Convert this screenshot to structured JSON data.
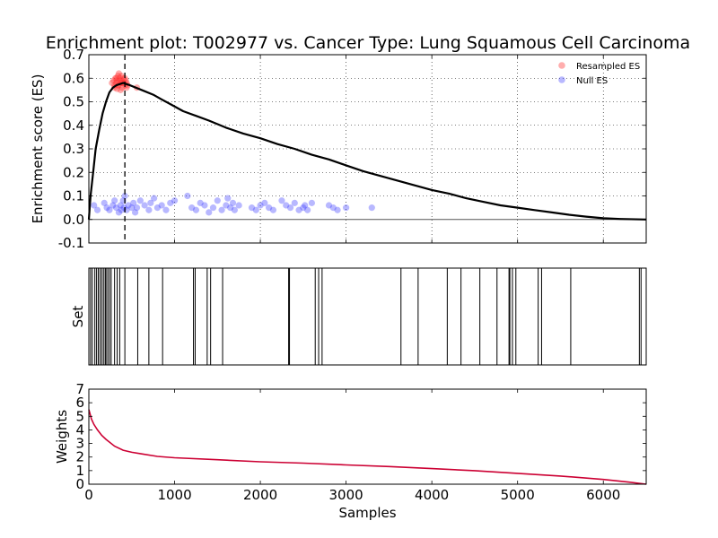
{
  "title": "Enrichment plot: T002977 vs. Cancer Type: Lung Squamous Cell Carcinoma",
  "chart_data": [
    {
      "panel": "enrichment",
      "type": "line",
      "ylabel": "Enrichment score (ES)",
      "xlim": [
        0,
        6500
      ],
      "ylim": [
        -0.1,
        0.7
      ],
      "yticks": [
        -0.1,
        0.0,
        0.1,
        0.2,
        0.3,
        0.4,
        0.5,
        0.6,
        0.7
      ],
      "xticks": [
        0,
        1000,
        2000,
        3000,
        4000,
        5000,
        6000
      ],
      "grid": true,
      "legend_position": "top-right",
      "peak_x": 420,
      "series": [
        {
          "name": "",
          "color": "#000000",
          "x": [
            0,
            20,
            50,
            80,
            120,
            160,
            200,
            240,
            280,
            320,
            360,
            400,
            440,
            480,
            550,
            650,
            750,
            850,
            950,
            1100,
            1250,
            1400,
            1600,
            1800,
            2000,
            2200,
            2400,
            2600,
            2800,
            3000,
            3200,
            3400,
            3600,
            3800,
            4000,
            4200,
            4400,
            4600,
            4800,
            5000,
            5200,
            5400,
            5600,
            5800,
            6000,
            6200,
            6500
          ],
          "y": [
            0.0,
            0.1,
            0.2,
            0.3,
            0.38,
            0.45,
            0.5,
            0.54,
            0.56,
            0.57,
            0.575,
            0.58,
            0.575,
            0.57,
            0.56,
            0.545,
            0.53,
            0.51,
            0.49,
            0.46,
            0.44,
            0.42,
            0.39,
            0.365,
            0.345,
            0.32,
            0.3,
            0.275,
            0.255,
            0.23,
            0.205,
            0.185,
            0.165,
            0.145,
            0.125,
            0.11,
            0.09,
            0.075,
            0.06,
            0.05,
            0.04,
            0.03,
            0.02,
            0.012,
            0.005,
            0.002,
            0.0
          ]
        },
        {
          "name": "Resampled ES",
          "color": "#ff3333",
          "type": "scatter",
          "x": [
            270,
            290,
            300,
            310,
            320,
            330,
            340,
            350,
            360,
            370,
            380,
            390,
            400,
            410,
            420,
            430,
            440,
            450,
            300,
            320,
            340,
            360,
            380,
            400,
            420,
            440,
            350,
            370,
            390,
            330,
            560
          ],
          "y": [
            0.58,
            0.59,
            0.57,
            0.6,
            0.58,
            0.59,
            0.61,
            0.57,
            0.6,
            0.58,
            0.59,
            0.56,
            0.6,
            0.58,
            0.57,
            0.59,
            0.58,
            0.57,
            0.56,
            0.6,
            0.57,
            0.59,
            0.61,
            0.58,
            0.6,
            0.56,
            0.62,
            0.55,
            0.58,
            0.555,
            0.56
          ]
        },
        {
          "name": "Null ES",
          "color": "#3333ff",
          "type": "scatter",
          "x": [
            60,
            100,
            180,
            210,
            240,
            280,
            300,
            320,
            350,
            370,
            380,
            400,
            410,
            420,
            440,
            460,
            500,
            520,
            540,
            560,
            600,
            650,
            700,
            720,
            760,
            800,
            850,
            900,
            950,
            1000,
            1150,
            1200,
            1250,
            1300,
            1350,
            1400,
            1450,
            1500,
            1550,
            1600,
            1620,
            1650,
            1680,
            1700,
            1750,
            1900,
            1950,
            2000,
            2050,
            2100,
            2150,
            2250,
            2300,
            2350,
            2400,
            2450,
            2500,
            2520,
            2550,
            2600,
            2800,
            2850,
            2900,
            3000,
            3300
          ],
          "y": [
            0.06,
            0.04,
            0.07,
            0.05,
            0.04,
            0.06,
            0.08,
            0.05,
            0.03,
            0.06,
            0.04,
            0.08,
            0.05,
            0.1,
            0.04,
            0.06,
            0.05,
            0.07,
            0.03,
            0.05,
            0.08,
            0.06,
            0.04,
            0.07,
            0.09,
            0.05,
            0.06,
            0.04,
            0.07,
            0.08,
            0.1,
            0.05,
            0.04,
            0.07,
            0.06,
            0.03,
            0.05,
            0.08,
            0.04,
            0.06,
            0.09,
            0.05,
            0.07,
            0.04,
            0.06,
            0.05,
            0.04,
            0.06,
            0.07,
            0.05,
            0.04,
            0.08,
            0.06,
            0.05,
            0.07,
            0.04,
            0.05,
            0.06,
            0.04,
            0.07,
            0.06,
            0.05,
            0.04,
            0.05,
            0.05
          ]
        }
      ]
    },
    {
      "panel": "set",
      "type": "bar",
      "ylabel": "Set",
      "xlim": [
        0,
        6500
      ],
      "positions": [
        20,
        40,
        70,
        90,
        110,
        130,
        150,
        170,
        190,
        200,
        220,
        240,
        260,
        300,
        330,
        360,
        420,
        570,
        700,
        860,
        1220,
        1240,
        1380,
        1420,
        1560,
        2330,
        2340,
        2640,
        2680,
        2720,
        3640,
        3840,
        4180,
        4340,
        4560,
        4760,
        4900,
        4910,
        4940,
        4980,
        5240,
        5280,
        5620,
        6420,
        6440
      ]
    },
    {
      "panel": "weights",
      "type": "line",
      "ylabel": "Weights",
      "xlabel": "Samples",
      "xlim": [
        0,
        6500
      ],
      "ylim": [
        0,
        7
      ],
      "yticks": [
        0,
        1,
        2,
        3,
        4,
        5,
        6,
        7
      ],
      "xticks": [
        0,
        1000,
        2000,
        3000,
        4000,
        5000,
        6000
      ],
      "grid": false,
      "series": [
        {
          "name": "",
          "color": "#cc0033",
          "x": [
            0,
            30,
            60,
            100,
            150,
            200,
            300,
            400,
            500,
            600,
            800,
            1000,
            1500,
            2000,
            2500,
            3000,
            3500,
            4000,
            4500,
            5000,
            5500,
            6000,
            6300,
            6500
          ],
          "y": [
            5.5,
            4.8,
            4.4,
            4.0,
            3.6,
            3.3,
            2.8,
            2.5,
            2.35,
            2.25,
            2.05,
            1.95,
            1.8,
            1.65,
            1.55,
            1.42,
            1.3,
            1.15,
            1.0,
            0.8,
            0.6,
            0.35,
            0.15,
            0.0
          ]
        }
      ]
    }
  ]
}
